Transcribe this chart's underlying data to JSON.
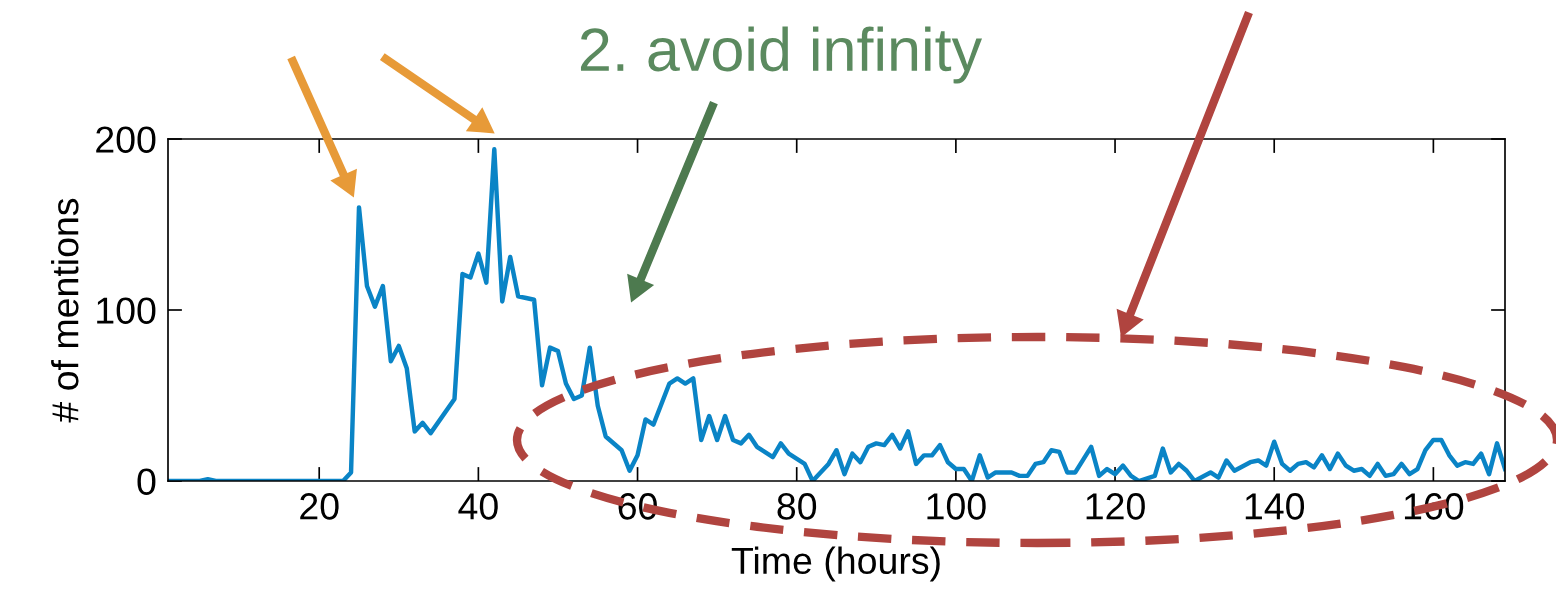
{
  "chart_data": {
    "type": "line",
    "xlabel": "Time (hours)",
    "ylabel": "# of mentions",
    "annotations": [
      "2. avoid infinity"
    ],
    "xlim": [
      1,
      169
    ],
    "xticks": [
      20,
      40,
      60,
      80,
      100,
      120,
      140,
      160
    ],
    "ylim": [
      0,
      200
    ],
    "yticks": [
      0,
      100,
      200
    ],
    "grid": false,
    "legend": false,
    "marker": "none",
    "line_style": "solid",
    "series": [
      {
        "color": "#0a84c6",
        "x": [
          1,
          5,
          6,
          7,
          23,
          24,
          25,
          26,
          27,
          28,
          29,
          30,
          31,
          32,
          33,
          34,
          37,
          38,
          39,
          40,
          41,
          42,
          43,
          44,
          45,
          46,
          47,
          48,
          49,
          50,
          51,
          52,
          53,
          54,
          55,
          56,
          58,
          59,
          60,
          61,
          62,
          64,
          65,
          66,
          67,
          68,
          69,
          70,
          71,
          72,
          73,
          74,
          75,
          77,
          78,
          79,
          81,
          82,
          84,
          85,
          86,
          87,
          88,
          89,
          90,
          91,
          92,
          93,
          94,
          95,
          96,
          97,
          98,
          99,
          100,
          101,
          102,
          103,
          104,
          105,
          106,
          107,
          108,
          109,
          110,
          111,
          112,
          113,
          114,
          115,
          117,
          118,
          119,
          120,
          121,
          122,
          123,
          125,
          126,
          127,
          128,
          129,
          130,
          132,
          133,
          134,
          135,
          137,
          138,
          139,
          140,
          141,
          142,
          143,
          144,
          145,
          146,
          147,
          148,
          149,
          150,
          151,
          152,
          153,
          154,
          155,
          156,
          157,
          158,
          159,
          160,
          161,
          162,
          163,
          164,
          165,
          166,
          167,
          168,
          169
        ],
        "values": [
          0,
          0,
          1,
          0,
          0,
          5,
          160,
          114,
          102,
          114,
          70,
          79,
          66,
          29,
          34,
          28,
          48,
          121,
          119,
          133,
          116,
          194,
          105,
          131,
          108,
          107,
          106,
          56,
          78,
          76,
          57,
          48,
          50,
          78,
          44,
          26,
          18,
          6,
          15,
          36,
          33,
          57,
          60,
          57,
          60,
          24,
          38,
          24,
          38,
          24,
          22,
          27,
          20,
          14,
          22,
          16,
          10,
          0,
          10,
          18,
          4,
          16,
          11,
          20,
          22,
          21,
          27,
          19,
          29,
          10,
          15,
          15,
          21,
          11,
          7,
          7,
          0,
          15,
          2,
          5,
          5,
          5,
          3,
          3,
          10,
          11,
          18,
          17,
          5,
          5,
          20,
          3,
          7,
          4,
          9,
          3,
          0,
          3,
          19,
          5,
          10,
          6,
          0,
          5,
          2,
          12,
          6,
          11,
          12,
          9,
          23,
          10,
          6,
          10,
          11,
          8,
          15,
          7,
          16,
          9,
          6,
          7,
          3,
          10,
          3,
          4,
          10,
          4,
          7,
          18,
          24,
          24,
          15,
          9,
          11,
          10,
          16,
          4,
          22,
          7
        ]
      }
    ]
  }
}
